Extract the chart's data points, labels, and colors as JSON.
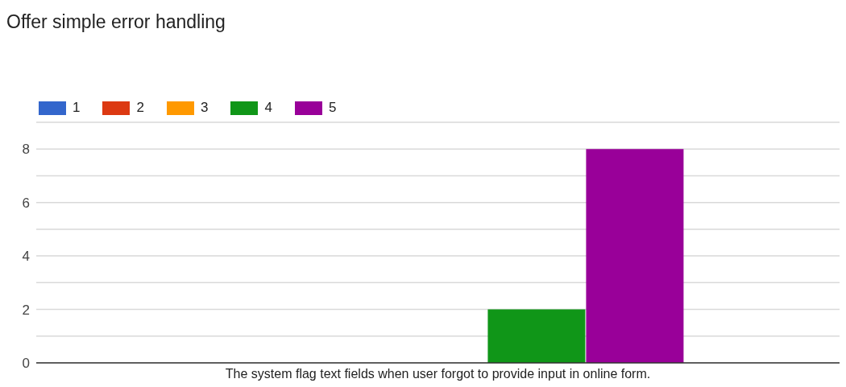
{
  "chart_data": {
    "type": "bar",
    "title": "Offer simple error handling",
    "categories": [
      "The system flag text fields when user forgot to provide input in online form."
    ],
    "series": [
      {
        "name": "1",
        "color": "#3366cc",
        "values": [
          0
        ]
      },
      {
        "name": "2",
        "color": "#dc3912",
        "values": [
          0
        ]
      },
      {
        "name": "3",
        "color": "#ff9900",
        "values": [
          0
        ]
      },
      {
        "name": "4",
        "color": "#109618",
        "values": [
          2
        ]
      },
      {
        "name": "5",
        "color": "#990099",
        "values": [
          8
        ]
      }
    ],
    "ylim": [
      0,
      9
    ],
    "yticks": [
      0,
      {
        "value": 1,
        "label": null
      },
      2,
      {
        "value": 3,
        "label": null
      },
      4,
      {
        "value": 5,
        "label": null
      },
      6,
      {
        "value": 7,
        "label": null
      },
      8,
      {
        "value": 9,
        "label": null
      }
    ],
    "grid": "y",
    "legend": "top left"
  }
}
